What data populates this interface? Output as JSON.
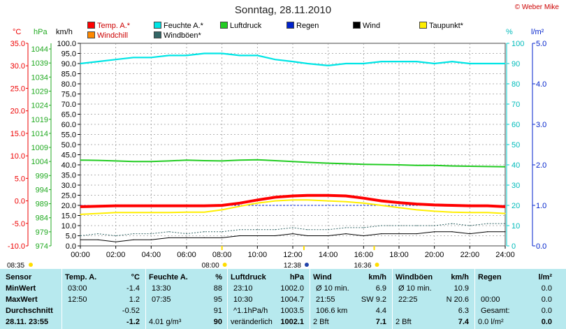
{
  "title": "Sonntag, 28.11.2010",
  "copyright": "© Weber Mike",
  "legend": [
    {
      "label": "Temp. A.*",
      "color": "#ff0000"
    },
    {
      "label": "Feuchte A.*",
      "color": "#00e5e5"
    },
    {
      "label": "Luftdruck",
      "color": "#22cc22"
    },
    {
      "label": "Regen",
      "color": "#0022cc"
    },
    {
      "label": "Wind",
      "color": "#000000"
    },
    {
      "label": "Taupunkt*",
      "color": "#ffee00"
    },
    {
      "label": "Windchill",
      "color": "#ff8800"
    },
    {
      "label": "Windböen*",
      "color": "#336666"
    }
  ],
  "axis_units": {
    "temp": "°C",
    "press": "hPa",
    "wind": "km/h",
    "hum": "%",
    "rain": "l/m²"
  },
  "chart_data": {
    "type": "line",
    "title": "Sonntag, 28.11.2010",
    "x_ticks": [
      "00:00",
      "02:00",
      "04:00",
      "06:00",
      "08:00",
      "10:00",
      "12:00",
      "14:00",
      "16:00",
      "18:00",
      "20:00",
      "22:00",
      "24:00"
    ],
    "axes": {
      "temp": {
        "unit": "°C",
        "range": [
          -10,
          35
        ],
        "ticks": [
          "35.0",
          "30.0",
          "25.0",
          "20.0",
          "15.0",
          "10.0",
          "5.0",
          "0.0",
          "-5.0",
          "-10.0"
        ]
      },
      "press": {
        "unit": "hPa",
        "range": [
          974,
          1046
        ],
        "ticks": [
          "1044",
          "1039",
          "1034",
          "1029",
          "1024",
          "1019",
          "1014",
          "1009",
          "1004",
          "999",
          "994",
          "989",
          "984",
          "979",
          "974"
        ]
      },
      "wind": {
        "unit": "km/h",
        "range": [
          0,
          100
        ],
        "ticks": [
          "100.0",
          "95.0",
          "90.0",
          "85.0",
          "80.0",
          "75.0",
          "70.0",
          "65.0",
          "60.0",
          "55.0",
          "50.0",
          "45.0",
          "40.0",
          "35.0",
          "30.0",
          "25.0",
          "20.0",
          "15.0",
          "10.0",
          "5.0",
          "0.0"
        ]
      },
      "hum": {
        "unit": "%",
        "range": [
          0,
          100
        ],
        "ticks": [
          "100",
          "90",
          "80",
          "70",
          "60",
          "50",
          "40",
          "30",
          "20",
          "10",
          "0"
        ]
      },
      "rain": {
        "unit": "l/m²",
        "range": [
          0,
          5
        ],
        "ticks": [
          "5.0",
          "4.0",
          "3.0",
          "2.0",
          "1.0",
          "0.0"
        ]
      }
    },
    "x_hours": [
      0,
      1,
      2,
      3,
      4,
      5,
      6,
      7,
      8,
      9,
      10,
      11,
      12,
      12.83,
      14,
      15,
      16,
      17,
      18,
      19,
      20,
      21,
      22,
      23,
      24
    ],
    "series": [
      {
        "name": "Feuchte A.*",
        "axis": "hum",
        "color": "#00e5e5",
        "values": [
          90,
          91,
          92,
          93,
          93,
          94,
          94,
          95,
          95,
          94,
          94,
          92,
          91,
          90,
          89,
          90,
          90,
          91,
          91,
          91,
          90,
          91,
          90,
          90,
          90
        ]
      },
      {
        "name": "Luftdruck",
        "axis": "press",
        "color": "#22cc22",
        "values": [
          1004.5,
          1004.4,
          1004.2,
          1004.0,
          1004.0,
          1004.2,
          1004.5,
          1004.3,
          1004.2,
          1004.5,
          1004.6,
          1004.3,
          1004.0,
          1003.7,
          1003.4,
          1003.2,
          1003.0,
          1002.9,
          1002.8,
          1002.6,
          1002.6,
          1002.4,
          1002.3,
          1002.2,
          1002.1
        ]
      },
      {
        "name": "Temp. A.*",
        "axis": "temp",
        "color": "#ff0000",
        "values": [
          -1.3,
          -1.2,
          -1.1,
          -1.1,
          -1.1,
          -1.1,
          -1.1,
          -1.1,
          -1.0,
          -0.5,
          0.2,
          0.8,
          1.1,
          1.2,
          1.2,
          1.1,
          0.6,
          0.0,
          -0.4,
          -0.7,
          -0.9,
          -1.0,
          -1.1,
          -1.1,
          -1.3
        ]
      },
      {
        "name": "Taupunkt*",
        "axis": "temp",
        "color": "#ffee00",
        "values": [
          -3.0,
          -2.8,
          -2.6,
          -2.6,
          -2.6,
          -2.6,
          -2.5,
          -2.5,
          -2.0,
          -1.2,
          -0.5,
          0.0,
          0.2,
          0.2,
          0.0,
          -0.2,
          -0.5,
          -1.0,
          -1.5,
          -2.0,
          -2.3,
          -2.5,
          -2.6,
          -2.6,
          -2.8
        ]
      },
      {
        "name": "Wind",
        "axis": "wind",
        "color": "#000000",
        "values": [
          3,
          3,
          2,
          3,
          3,
          4,
          4,
          4,
          4,
          5,
          5,
          5,
          6,
          5,
          5,
          6,
          5,
          6,
          6,
          6,
          7,
          7,
          6,
          7,
          7
        ]
      },
      {
        "name": "Windböen*",
        "axis": "wind",
        "color": "#336666",
        "values": [
          5,
          6,
          5,
          6,
          6,
          7,
          6,
          7,
          7,
          8,
          8,
          8,
          9,
          8,
          8,
          9,
          9,
          10,
          10,
          10,
          10,
          11,
          10,
          11,
          11
        ]
      }
    ],
    "events": [
      {
        "label": "08:35",
        "position": "left"
      },
      {
        "label": "08:00",
        "time": 8.0
      },
      {
        "label": "12:38",
        "time": 12.63
      },
      {
        "label": "16:36",
        "time": 16.6
      }
    ],
    "grid": true
  },
  "stats": {
    "row_labels": [
      "Sensor",
      "MinWert",
      "MaxWert",
      "Durchschnitt",
      "28.11. 23:55"
    ],
    "columns": [
      {
        "header": "Temp. A.",
        "unit": "°C",
        "rows": [
          [
            "03:00",
            "-1.4"
          ],
          [
            "12:50",
            "1.2"
          ],
          [
            "",
            "-0.52"
          ],
          [
            "",
            "-1.2"
          ]
        ]
      },
      {
        "header": "Feuchte A.",
        "unit": "%",
        "rows": [
          [
            "13:30",
            "88"
          ],
          [
            "07:35",
            "95"
          ],
          [
            "",
            "91"
          ],
          [
            "4.01 g/m³",
            "90"
          ]
        ]
      },
      {
        "header": "Luftdruck",
        "unit": "hPa",
        "rows": [
          [
            "23:10",
            "1002.0"
          ],
          [
            "10:30",
            "1004.7"
          ],
          [
            "^1.1hPa/h",
            "1003.5"
          ],
          [
            "veränderlich",
            "1002.1"
          ]
        ]
      },
      {
        "header": "Wind",
        "unit": "km/h",
        "rows": [
          [
            "Ø 10 min.",
            "6.9"
          ],
          [
            "21:55",
            "SW 9.2"
          ],
          [
            "106.6 km",
            "4.4"
          ],
          [
            "2 Bft",
            "7.1"
          ]
        ]
      },
      {
        "header": "Windböen",
        "unit": "km/h",
        "rows": [
          [
            "Ø 10 min.",
            "10.9"
          ],
          [
            "22:25",
            "N 20.6"
          ],
          [
            "",
            "6.3"
          ],
          [
            "2 Bft",
            "7.4"
          ]
        ]
      },
      {
        "header": "Regen",
        "unit": "l/m²",
        "rows": [
          [
            "",
            "0.0"
          ],
          [
            "00:00",
            "0.0"
          ],
          [
            "Gesamt:",
            "0.0"
          ],
          [
            "0.0 l/m²",
            "0.0"
          ]
        ]
      }
    ]
  }
}
